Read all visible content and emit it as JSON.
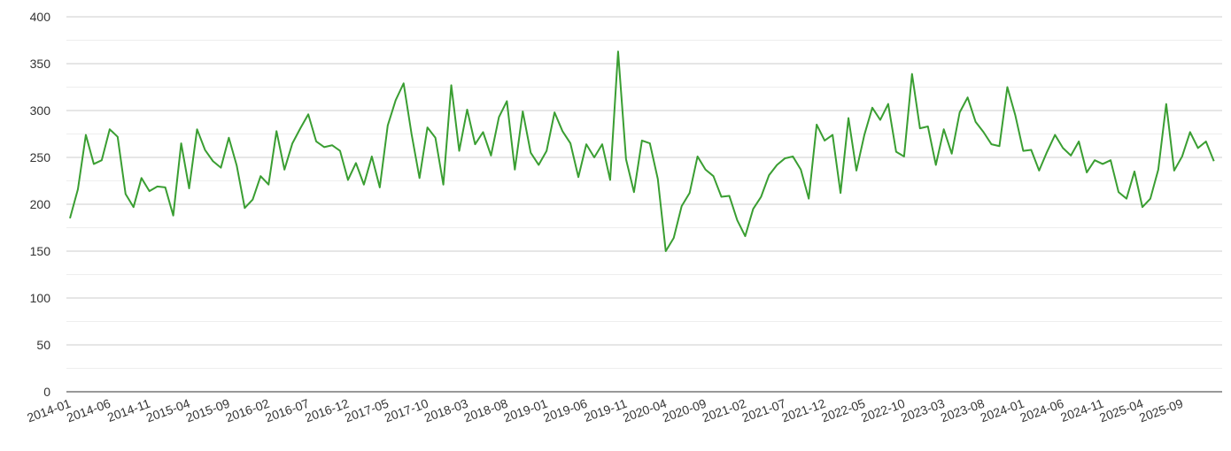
{
  "chart_data": {
    "type": "line",
    "title": "",
    "xlabel": "",
    "ylabel": "",
    "ylim": [
      0,
      400
    ],
    "yticks": [
      0,
      50,
      100,
      150,
      200,
      250,
      300,
      350,
      400
    ],
    "grid": true,
    "minor_grid": true,
    "line_color": "#3a9e32",
    "x_tick_labels": [
      "2014-01",
      "2014-06",
      "2014-11",
      "2015-04",
      "2015-09",
      "2016-02",
      "2016-07",
      "2016-12",
      "2017-05",
      "2017-10",
      "2018-03",
      "2018-08",
      "2019-01",
      "2019-06",
      "2019-11",
      "2020-04",
      "2020-09",
      "2021-02",
      "2021-07",
      "2021-12",
      "2022-05",
      "2022-10",
      "2023-03",
      "2023-08",
      "2024-01",
      "2024-06",
      "2024-11",
      "2025-04",
      "2025-09"
    ],
    "series": [
      {
        "start": "2014-01",
        "values": [
          185,
          216,
          274,
          243,
          247,
          280,
          272,
          211,
          197,
          228,
          214,
          219,
          218,
          188,
          265,
          217,
          280,
          258,
          246,
          239,
          271,
          241,
          196,
          205,
          230,
          221,
          278,
          237,
          265,
          281,
          296,
          267,
          261,
          263,
          257,
          226,
          244,
          221,
          251,
          218,
          284,
          311,
          329,
          275,
          228,
          282,
          271,
          221,
          327,
          257,
          301,
          264,
          277,
          252,
          293,
          310,
          237,
          299,
          255,
          242,
          257,
          298,
          278,
          265,
          229,
          264,
          250,
          264,
          226,
          363,
          248,
          213,
          268,
          265,
          227,
          150,
          164,
          198,
          212,
          251,
          237,
          230,
          208,
          209,
          183,
          166,
          195,
          208,
          231,
          242,
          249,
          251,
          237,
          206,
          285,
          268,
          274,
          212,
          292,
          236,
          274,
          303,
          290,
          307,
          256,
          251,
          339,
          281,
          283,
          242,
          280,
          254,
          298,
          314,
          288,
          277,
          264,
          262,
          325,
          295,
          257,
          258,
          236,
          256,
          274,
          260,
          252,
          267,
          234,
          247,
          243,
          247,
          213,
          206,
          235,
          197,
          206,
          237,
          307,
          236,
          251,
          277,
          260,
          267,
          246
        ]
      }
    ]
  }
}
